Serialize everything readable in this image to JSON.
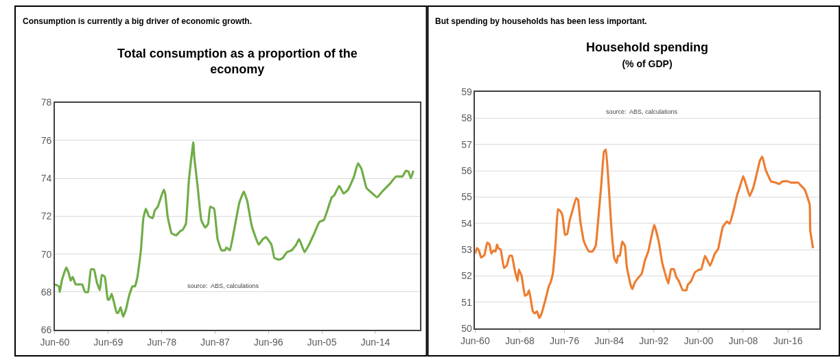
{
  "chart_data": [
    {
      "type": "line",
      "title": "Total consumption as a proportion of the economy",
      "annotations": [
        "Consumption is currently a big driver of economic growth.",
        "source:  ABS, calculations"
      ],
      "x": [
        "1960-06",
        "1961-02",
        "1961-04",
        "1961-08",
        "1962-05",
        "1962-10",
        "1963-02",
        "1963-06",
        "1963-12",
        "1964-05",
        "1965-01",
        "1965-07",
        "1966-01",
        "1966-07",
        "1967-01",
        "1967-07",
        "1968-01",
        "1968-05",
        "1968-11",
        "1969-05",
        "1969-08",
        "1970-01",
        "1970-11",
        "1971-02",
        "1971-07",
        "1971-12",
        "1972-06",
        "1972-12",
        "1973-07",
        "1973-12",
        "1974-05",
        "1974-12",
        "1975-05",
        "1975-10",
        "1976-04",
        "1976-12",
        "1977-04",
        "1977-10",
        "1978-02",
        "1978-10",
        "1979-01",
        "1979-06",
        "1980-02",
        "1980-10",
        "1980-12",
        "1981-07",
        "1982-01",
        "1982-07",
        "1983-01",
        "1983-10",
        "1983-12",
        "1984-07",
        "1985-02",
        "1985-10",
        "1986-04",
        "1986-08",
        "1987-04",
        "1987-11",
        "1988-07",
        "1989-02",
        "1989-05",
        "1989-12",
        "1990-08",
        "1991-07",
        "1992-04",
        "1992-11",
        "1993-08",
        "1994-10",
        "1995-07",
        "1996-01",
        "1996-12",
        "1997-06",
        "1998-04",
        "1998-11",
        "1999-07",
        "2000-05",
        "2001-02",
        "2001-08",
        "2002-07",
        "2003-04",
        "2004-01",
        "2005-01",
        "2005-10",
        "2006-05",
        "2007-02",
        "2007-07",
        "2008-05",
        "2009-02",
        "2009-11",
        "2010-11",
        "2011-07",
        "2012-02",
        "2012-12",
        "2013-08",
        "2014-10",
        "2015-08",
        "2016-11",
        "2017-12",
        "2019-01",
        "2019-08",
        "2020-01",
        "2020-06",
        "2020-11"
      ],
      "series": [
        {
          "color": "#70ad47",
          "values": [
            68.4,
            68.3,
            68.0,
            68.6,
            69.3,
            69.0,
            68.6,
            68.8,
            68.4,
            68.4,
            68.4,
            68.0,
            68.0,
            69.2,
            69.2,
            68.5,
            68.1,
            68.9,
            68.8,
            67.6,
            67.6,
            67.9,
            66.9,
            66.9,
            67.2,
            66.7,
            67.1,
            67.8,
            68.3,
            68.3,
            68.8,
            70.2,
            71.9,
            72.4,
            72.0,
            71.9,
            72.3,
            72.5,
            72.8,
            73.4,
            73.2,
            72.0,
            71.1,
            71.0,
            71.0,
            71.2,
            71.3,
            71.6,
            73.9,
            75.9,
            75.1,
            73.5,
            71.8,
            71.4,
            71.6,
            72.5,
            72.4,
            70.8,
            70.2,
            70.2,
            70.35,
            70.2,
            71.2,
            72.7,
            73.3,
            72.8,
            71.5,
            70.5,
            70.8,
            70.9,
            70.5,
            69.8,
            69.7,
            69.8,
            70.1,
            70.2,
            70.5,
            70.8,
            70.1,
            70.5,
            71.0,
            71.7,
            71.8,
            72.3,
            73.0,
            73.1,
            73.6,
            73.2,
            73.4,
            74.1,
            74.8,
            74.5,
            73.5,
            73.3,
            73.0,
            73.3,
            73.7,
            74.1,
            74.1,
            74.4,
            74.35,
            74.0,
            74.4
          ]
        }
      ],
      "xlim": [
        "1960-06",
        "2021-12"
      ],
      "xticks": [
        {
          "value": "1960-06",
          "label": "Jun-60"
        },
        {
          "value": "1969-06",
          "label": "Jun-69"
        },
        {
          "value": "1978-06",
          "label": "Jun-78"
        },
        {
          "value": "1987-06",
          "label": "Jun-87"
        },
        {
          "value": "1996-06",
          "label": "Jun-96"
        },
        {
          "value": "2005-06",
          "label": "Jun-05"
        },
        {
          "value": "2014-06",
          "label": "Jun-14"
        }
      ],
      "ylim": [
        66,
        78
      ],
      "yticks": [
        66,
        68,
        70,
        72,
        74,
        76,
        78
      ],
      "grid": "y",
      "line_style": "solid",
      "marker": "none"
    },
    {
      "type": "line",
      "title": "Household spending",
      "subtitle": "(% of GDP)",
      "annotations": [
        "But spending by households has been less important.",
        "source:  ABS, calculations"
      ],
      "x": [
        "1960-06",
        "1960-10",
        "1961-02",
        "1961-07",
        "1962-02",
        "1962-08",
        "1963-01",
        "1963-05",
        "1963-10",
        "1964-02",
        "1964-05",
        "1964-08",
        "1965-01",
        "1965-08",
        "1966-02",
        "1966-08",
        "1967-01",
        "1967-07",
        "1968-01",
        "1968-04",
        "1968-10",
        "1969-05",
        "1969-10",
        "1970-02",
        "1970-10",
        "1971-02",
        "1971-07",
        "1971-12",
        "1972-05",
        "1972-10",
        "1973-02",
        "1973-08",
        "1974-01",
        "1974-05",
        "1974-11",
        "1975-04",
        "1975-10",
        "1976-02",
        "1976-07",
        "1976-12",
        "1977-05",
        "1978-01",
        "1978-07",
        "1978-11",
        "1979-04",
        "1979-11",
        "1980-04",
        "1980-11",
        "1981-06",
        "1982-01",
        "1982-06",
        "1983-01",
        "1983-07",
        "1983-11",
        "1984-05",
        "1984-11",
        "1985-05",
        "1985-10",
        "1986-01",
        "1986-05",
        "1986-10",
        "1987-04",
        "1987-08",
        "1988-04",
        "1988-08",
        "1989-01",
        "1989-08",
        "1990-04",
        "1990-11",
        "1991-06",
        "1992-07",
        "1993-05",
        "1993-12",
        "1995-01",
        "1995-07",
        "1996-01",
        "1996-06",
        "1996-12",
        "1997-08",
        "1998-04",
        "1998-07",
        "1999-02",
        "1999-10",
        "2000-05",
        "2000-12",
        "2001-08",
        "2002-07",
        "2003-05",
        "2003-12",
        "2004-10",
        "2005-07",
        "2006-01",
        "2006-10",
        "2007-05",
        "2007-10",
        "2008-06",
        "2009-01",
        "2009-08",
        "2010-04",
        "2010-11",
        "2011-06",
        "2011-11",
        "2012-06",
        "2013-06",
        "2014-04",
        "2014-11",
        "2015-06",
        "2016-04",
        "2017-01",
        "2017-08",
        "2018-04",
        "2018-11",
        "2019-06",
        "2019-12",
        "2020-05",
        "2020-06",
        "2020-12"
      ],
      "series": [
        {
          "color": "#ed7d31",
          "values": [
            52.85,
            53.06,
            52.98,
            52.7,
            52.8,
            53.27,
            53.2,
            52.85,
            52.98,
            52.93,
            53.2,
            53.06,
            53.0,
            52.3,
            52.4,
            52.77,
            52.77,
            52.25,
            51.8,
            52.25,
            52.0,
            51.25,
            51.3,
            51.46,
            50.66,
            50.58,
            50.66,
            50.4,
            50.58,
            50.9,
            51.16,
            51.59,
            51.8,
            52.09,
            53.27,
            54.54,
            54.45,
            54.28,
            53.57,
            53.6,
            54.1,
            54.6,
            54.96,
            54.9,
            54.1,
            53.36,
            53.14,
            52.93,
            52.93,
            53.14,
            54.03,
            55.46,
            56.73,
            56.81,
            55.46,
            53.78,
            52.68,
            52.5,
            52.77,
            52.77,
            53.31,
            53.14,
            52.34,
            51.67,
            51.5,
            51.75,
            51.92,
            52.09,
            52.6,
            52.93,
            53.95,
            53.27,
            52.5,
            51.71,
            52.26,
            52.26,
            51.97,
            51.8,
            51.46,
            51.46,
            51.67,
            51.8,
            52.13,
            52.22,
            52.26,
            52.77,
            52.39,
            52.85,
            53.02,
            53.86,
            54.07,
            53.99,
            54.54,
            55.08,
            55.34,
            55.8,
            55.42,
            55.04,
            55.38,
            55.88,
            56.39,
            56.54,
            56.05,
            55.59,
            55.55,
            55.5,
            55.59,
            55.61,
            55.55,
            55.55,
            55.55,
            55.42,
            55.29,
            55.0,
            54.7,
            53.73,
            53.06
          ]
        }
      ],
      "xlim": [
        "1960-06",
        "2022-01"
      ],
      "xticks": [
        {
          "value": "1960-06",
          "label": "Jun-60"
        },
        {
          "value": "1968-06",
          "label": "Jun-68"
        },
        {
          "value": "1976-06",
          "label": "Jun-76"
        },
        {
          "value": "1984-06",
          "label": "Jun-84"
        },
        {
          "value": "1992-06",
          "label": "Jun-92"
        },
        {
          "value": "2000-06",
          "label": "Jun-00"
        },
        {
          "value": "2008-06",
          "label": "Jun-08"
        },
        {
          "value": "2016-06",
          "label": "Jun-16"
        }
      ],
      "ylim": [
        50,
        59
      ],
      "yticks": [
        50,
        51,
        52,
        53,
        54,
        55,
        56,
        57,
        58,
        59
      ],
      "grid": "y",
      "line_style": "solid",
      "marker": "none"
    }
  ]
}
